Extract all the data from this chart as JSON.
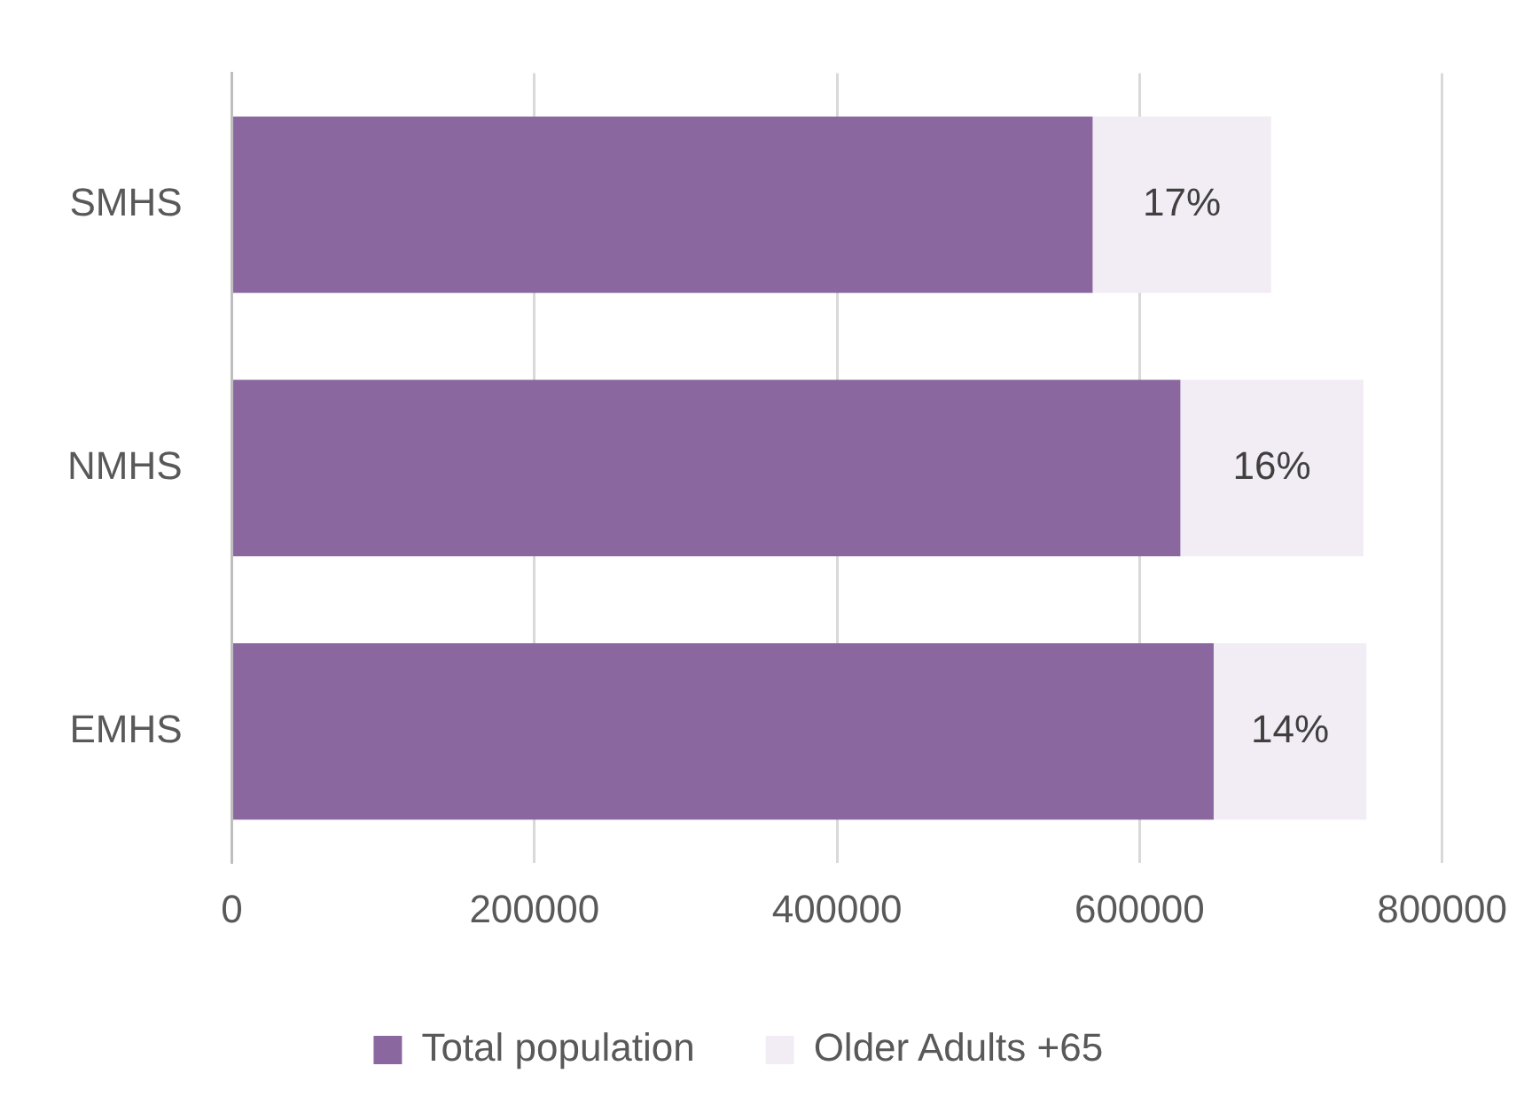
{
  "chart_data": {
    "type": "bar",
    "orientation": "horizontal",
    "stacked": true,
    "categories": [
      "SMHS",
      "NMHS",
      "EMHS"
    ],
    "series": [
      {
        "name": "Total population",
        "color": "#8b67a0",
        "values": [
          569000,
          627000,
          649000
        ]
      },
      {
        "name": "Older Adults +65",
        "color": "#f2ecf4",
        "values": [
          118000,
          121000,
          101000
        ]
      }
    ],
    "annotations": [
      "17%",
      "16%",
      "14%"
    ],
    "xlim": [
      0,
      800000
    ],
    "xticks": [
      0,
      200000,
      400000,
      600000,
      800000
    ],
    "grid": "x",
    "legend": "bottom"
  }
}
